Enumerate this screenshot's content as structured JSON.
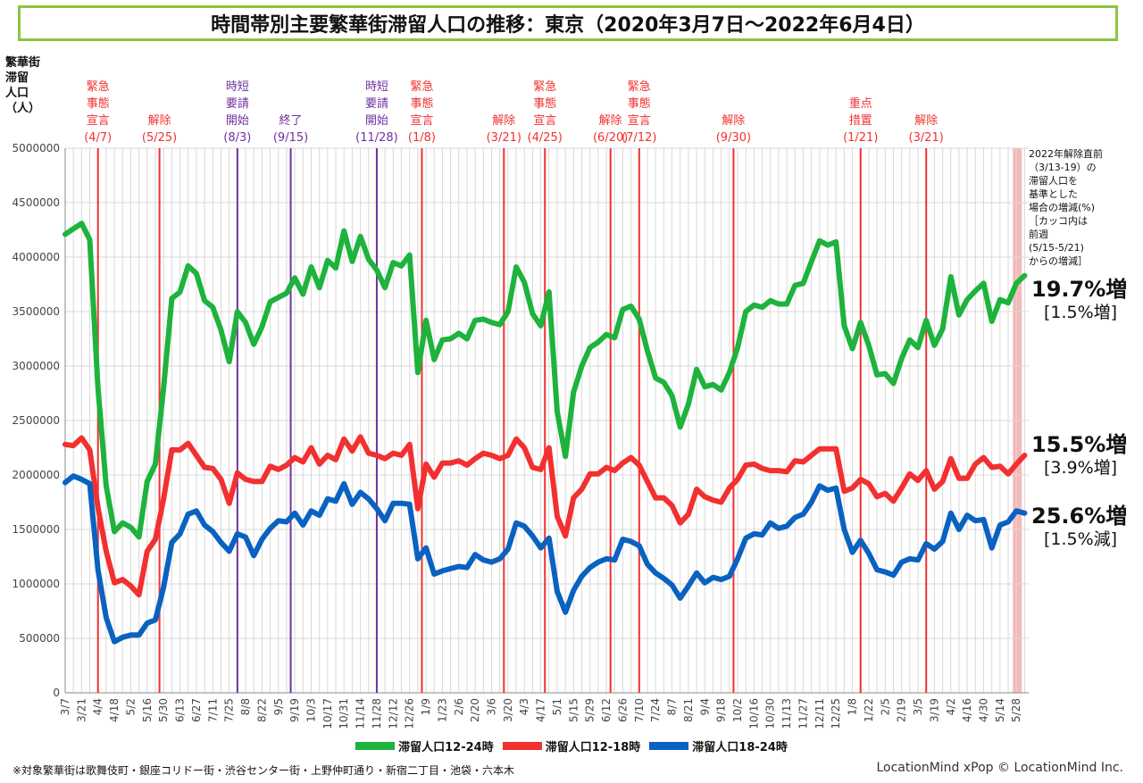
{
  "title": "時間帯別主要繁華街滞留人口の推移：東京（2020年3月7日〜2022年6月4日）",
  "ylabel": "繁華街\n滞留\n人口\n（人）",
  "reference_note": "2022年解除直前\n（3/13-19）の\n滞留人口を\n基準とした\n場合の増減(%)\n［カッコ内は\n前週\n(5/15-5/21)\nからの増減］",
  "end_labels": [
    {
      "main": "19.7%増",
      "sub": "[1.5%増]"
    },
    {
      "main": "15.5%増",
      "sub": "[3.9%増]"
    },
    {
      "main": "25.6%増",
      "sub": "[1.5%減]"
    }
  ],
  "footnote": "※対象繁華街は歌舞伎町・銀座コリドー街・渋谷センター街・上野仲町通り・新宿二丁目・池袋・六本木",
  "credit": "LocationMind xPop © LocationMind Inc.",
  "colors": {
    "green": "#1db33c",
    "red": "#f23030",
    "blue": "#0a62c0",
    "purple": "#7030a0",
    "title_border": "#8cc63f",
    "highlight": "#f4a7a7"
  },
  "chart_data": {
    "type": "line",
    "ylim": [
      0,
      5000000
    ],
    "yticks": [
      0,
      500000,
      1000000,
      1500000,
      2000000,
      2500000,
      3000000,
      3500000,
      4000000,
      4500000,
      5000000
    ],
    "xtick_labels": [
      "3/7",
      "3/21",
      "4/4",
      "4/18",
      "5/2",
      "5/16",
      "5/30",
      "6/13",
      "6/27",
      "7/11",
      "7/25",
      "8/8",
      "8/22",
      "9/5",
      "9/19",
      "10/3",
      "10/17",
      "10/31",
      "11/14",
      "11/28",
      "12/12",
      "12/26",
      "1/9",
      "1/23",
      "2/6",
      "2/20",
      "3/6",
      "3/20",
      "4/3",
      "4/17",
      "5/1",
      "5/15",
      "5/29",
      "6/12",
      "6/26",
      "7/10",
      "7/24",
      "8/7",
      "8/21",
      "9/4",
      "9/18",
      "10/2",
      "10/16",
      "10/30",
      "11/13",
      "11/27",
      "12/11",
      "12/25",
      "1/8",
      "1/22",
      "2/5",
      "2/19",
      "3/5",
      "3/19",
      "4/2",
      "4/16",
      "4/30",
      "5/14",
      "5/28"
    ],
    "x_label_step": 2,
    "events": [
      {
        "week": 4,
        "color": "red",
        "label": [
          "緊急",
          "事態",
          "宣言",
          "(4/7)"
        ]
      },
      {
        "week": 11.5,
        "color": "red",
        "label": [
          "解除",
          "(5/25)"
        ]
      },
      {
        "week": 21,
        "color": "purple",
        "label": [
          "時短",
          "要請",
          "開始",
          "(8/3)"
        ]
      },
      {
        "week": 27.5,
        "color": "purple",
        "label": [
          "終了",
          "(9/15)"
        ]
      },
      {
        "week": 38,
        "color": "purple",
        "label": [
          "時短",
          "要請",
          "開始",
          "(11/28)"
        ]
      },
      {
        "week": 43.5,
        "color": "red",
        "label": [
          "緊急",
          "事態",
          "宣言",
          "(1/8)"
        ]
      },
      {
        "week": 53.5,
        "color": "red",
        "label": [
          "解除",
          "(3/21)"
        ]
      },
      {
        "week": 58.5,
        "color": "red",
        "label": [
          "緊急",
          "事態",
          "宣言",
          "(4/25)"
        ]
      },
      {
        "week": 66.5,
        "color": "red",
        "label": [
          "解除",
          "(6/20)"
        ]
      },
      {
        "week": 70,
        "color": "red",
        "label": [
          "緊急",
          "事態",
          "宣言",
          "(7/12)"
        ]
      },
      {
        "week": 81.5,
        "color": "red",
        "label": [
          "解除",
          "(9/30)"
        ]
      },
      {
        "week": 97,
        "color": "red",
        "label": [
          "重点",
          "措置",
          "(1/21)"
        ]
      },
      {
        "week": 105,
        "color": "red",
        "label": [
          "解除",
          "(3/21)"
        ]
      }
    ],
    "highlight_week": 116,
    "series": [
      {
        "name": "滞留人口12-24時",
        "color": "green",
        "values": [
          4210000,
          4260000,
          4310000,
          4160000,
          2800000,
          1900000,
          1480000,
          1560000,
          1520000,
          1430000,
          1940000,
          2100000,
          2800000,
          3620000,
          3680000,
          3920000,
          3850000,
          3600000,
          3540000,
          3330000,
          3040000,
          3500000,
          3400000,
          3200000,
          3360000,
          3590000,
          3630000,
          3670000,
          3810000,
          3660000,
          3910000,
          3720000,
          3970000,
          3900000,
          4240000,
          3960000,
          4190000,
          3980000,
          3880000,
          3720000,
          3950000,
          3920000,
          4020000,
          2940000,
          3420000,
          3060000,
          3240000,
          3250000,
          3300000,
          3250000,
          3420000,
          3430000,
          3400000,
          3380000,
          3500000,
          3910000,
          3770000,
          3480000,
          3370000,
          3680000,
          2580000,
          2170000,
          2760000,
          3000000,
          3170000,
          3220000,
          3290000,
          3260000,
          3520000,
          3550000,
          3430000,
          3140000,
          2890000,
          2850000,
          2730000,
          2440000,
          2650000,
          2970000,
          2810000,
          2830000,
          2780000,
          2940000,
          3170000,
          3500000,
          3560000,
          3540000,
          3600000,
          3570000,
          3570000,
          3740000,
          3760000,
          3960000,
          4150000,
          4110000,
          4140000,
          3370000,
          3160000,
          3400000,
          3190000,
          2920000,
          2930000,
          2840000,
          3070000,
          3240000,
          3170000,
          3420000,
          3190000,
          3340000,
          3820000,
          3470000,
          3610000,
          3690000,
          3760000,
          3410000,
          3610000,
          3580000,
          3760000,
          3830000
        ]
      },
      {
        "name": "滞留人口12-18時",
        "color": "red",
        "values": [
          2280000,
          2270000,
          2340000,
          2230000,
          1700000,
          1300000,
          1010000,
          1040000,
          980000,
          900000,
          1300000,
          1410000,
          1780000,
          2230000,
          2230000,
          2290000,
          2180000,
          2070000,
          2060000,
          1960000,
          1740000,
          2020000,
          1960000,
          1940000,
          1940000,
          2080000,
          2050000,
          2090000,
          2160000,
          2120000,
          2250000,
          2100000,
          2180000,
          2140000,
          2330000,
          2220000,
          2350000,
          2200000,
          2180000,
          2150000,
          2200000,
          2180000,
          2280000,
          1690000,
          2100000,
          1980000,
          2110000,
          2110000,
          2130000,
          2090000,
          2150000,
          2200000,
          2180000,
          2150000,
          2180000,
          2330000,
          2250000,
          2070000,
          2050000,
          2250000,
          1620000,
          1440000,
          1790000,
          1870000,
          2010000,
          2010000,
          2070000,
          2040000,
          2110000,
          2160000,
          2090000,
          1940000,
          1790000,
          1790000,
          1720000,
          1560000,
          1640000,
          1870000,
          1800000,
          1770000,
          1750000,
          1880000,
          1960000,
          2090000,
          2100000,
          2060000,
          2040000,
          2040000,
          2030000,
          2130000,
          2120000,
          2180000,
          2240000,
          2240000,
          2240000,
          1850000,
          1880000,
          1960000,
          1920000,
          1800000,
          1830000,
          1760000,
          1880000,
          2010000,
          1950000,
          2040000,
          1870000,
          1940000,
          2150000,
          1970000,
          1970000,
          2100000,
          2160000,
          2070000,
          2080000,
          2010000,
          2100000,
          2180000
        ]
      },
      {
        "name": "滞留人口18-24時",
        "color": "blue",
        "values": [
          1930000,
          1990000,
          1960000,
          1920000,
          1130000,
          690000,
          470000,
          510000,
          530000,
          530000,
          640000,
          670000,
          970000,
          1380000,
          1460000,
          1640000,
          1670000,
          1540000,
          1480000,
          1380000,
          1300000,
          1460000,
          1430000,
          1260000,
          1410000,
          1510000,
          1580000,
          1570000,
          1650000,
          1540000,
          1670000,
          1630000,
          1780000,
          1760000,
          1920000,
          1730000,
          1840000,
          1780000,
          1690000,
          1580000,
          1740000,
          1740000,
          1730000,
          1230000,
          1330000,
          1090000,
          1120000,
          1140000,
          1160000,
          1150000,
          1270000,
          1220000,
          1200000,
          1230000,
          1320000,
          1560000,
          1530000,
          1440000,
          1330000,
          1420000,
          930000,
          740000,
          940000,
          1070000,
          1150000,
          1200000,
          1230000,
          1220000,
          1410000,
          1390000,
          1350000,
          1180000,
          1100000,
          1050000,
          990000,
          870000,
          980000,
          1100000,
          1010000,
          1060000,
          1040000,
          1070000,
          1230000,
          1420000,
          1460000,
          1450000,
          1560000,
          1510000,
          1530000,
          1610000,
          1640000,
          1750000,
          1900000,
          1860000,
          1880000,
          1500000,
          1290000,
          1400000,
          1280000,
          1130000,
          1110000,
          1080000,
          1200000,
          1230000,
          1220000,
          1370000,
          1320000,
          1390000,
          1650000,
          1500000,
          1630000,
          1580000,
          1590000,
          1330000,
          1540000,
          1570000,
          1670000,
          1650000
        ]
      }
    ]
  }
}
